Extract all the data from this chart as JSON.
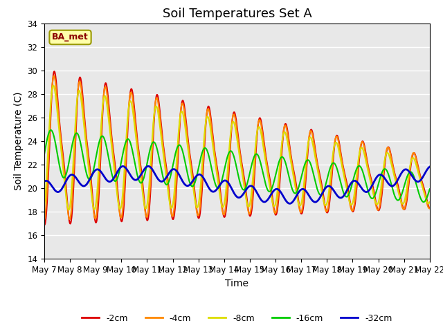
{
  "title": "Soil Temperatures Set A",
  "xlabel": "Time",
  "ylabel": "Soil Temperature (C)",
  "ylim": [
    14,
    34
  ],
  "yticks": [
    14,
    16,
    18,
    20,
    22,
    24,
    26,
    28,
    30,
    32,
    34
  ],
  "series_names": [
    "-2cm",
    "-4cm",
    "-8cm",
    "-16cm",
    "-32cm"
  ],
  "series_colors": [
    "#dd0000",
    "#ff8800",
    "#dddd00",
    "#00cc00",
    "#0000cc"
  ],
  "series_lw": [
    1.5,
    1.5,
    1.5,
    1.5,
    2.0
  ],
  "annotation_label": "BA_met",
  "plot_bg_color": "#e8e8e8",
  "grid_color": "white",
  "title_fontsize": 13,
  "axis_fontsize": 10,
  "tick_fontsize": 8.5,
  "legend_fontsize": 9
}
